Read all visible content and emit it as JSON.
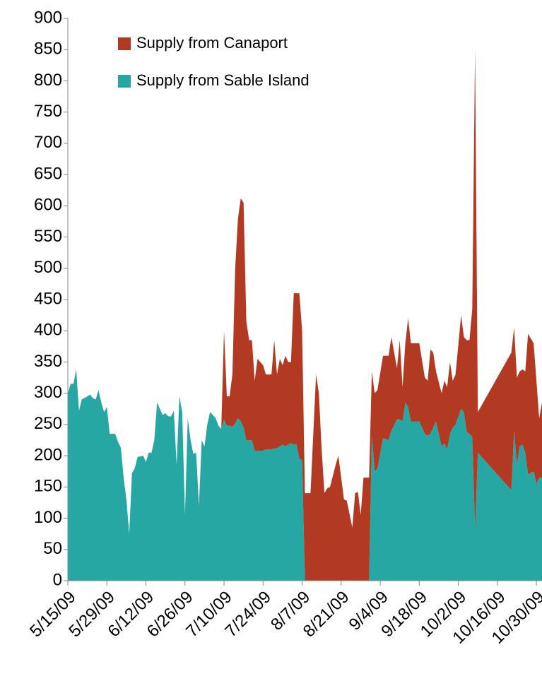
{
  "chart_data": {
    "type": "stacked-area",
    "x": [
      "5/15/09",
      "5/16/09",
      "5/17/09",
      "5/18/09",
      "5/19/09",
      "5/20/09",
      "5/22/09",
      "5/23/09",
      "5/24/09",
      "5/25/09",
      "5/26/09",
      "5/27/09",
      "5/28/09",
      "5/29/09",
      "5/30/09",
      "6/1/09",
      "6/2/09",
      "6/3/09",
      "6/4/09",
      "6/5/09",
      "6/6/09",
      "6/7/09",
      "6/8/09",
      "6/9/09",
      "6/11/09",
      "6/12/09",
      "6/13/09",
      "6/14/09",
      "6/15/09",
      "6/16/09",
      "6/17/09",
      "6/18/09",
      "6/19/09",
      "6/20/09",
      "6/21/09",
      "6/22/09",
      "6/23/09",
      "6/24/09",
      "6/25/09",
      "6/26/09",
      "6/27/09",
      "6/28/09",
      "6/29/09",
      "6/30/09",
      "7/1/09",
      "7/2/09",
      "7/3/09",
      "7/4/09",
      "7/5/09",
      "7/6/09",
      "7/7/09",
      "7/8/09",
      "7/9/09",
      "7/10/09",
      "7/11/09",
      "7/12/09",
      "7/13/09",
      "7/14/09",
      "7/15/09",
      "7/16/09",
      "7/17/09",
      "7/18/09",
      "7/19/09",
      "7/20/09",
      "7/21/09",
      "7/22/09",
      "7/23/09",
      "7/24/09",
      "7/25/09",
      "7/27/09",
      "7/28/09",
      "7/29/09",
      "7/30/09",
      "7/31/09",
      "8/1/09",
      "8/2/09",
      "8/3/09",
      "8/4/09",
      "8/5/09",
      "8/6/09",
      "8/7/09",
      "8/8/09",
      "8/10/09",
      "8/12/09",
      "8/13/09",
      "8/14/09",
      "8/15/09",
      "8/16/09",
      "8/17/09",
      "8/19/09",
      "8/20/09",
      "8/21/09",
      "8/22/09",
      "8/23/09",
      "8/25/09",
      "8/26/09",
      "8/27/09",
      "8/28/09",
      "8/29/09",
      "8/31/09",
      "9/1/09",
      "9/2/09",
      "9/3/09",
      "9/5/09",
      "9/7/09",
      "9/8/09",
      "9/10/09",
      "9/11/09",
      "9/12/09",
      "9/13/09",
      "9/14/09",
      "9/15/09",
      "9/18/09",
      "9/20/09",
      "9/21/09",
      "9/22/09",
      "9/23/09",
      "9/24/09",
      "9/26/09",
      "9/27/09",
      "9/28/09",
      "9/29/09",
      "9/30/09",
      "10/1/09",
      "10/3/09",
      "10/4/09",
      "10/5/09",
      "10/6/09",
      "10/7/09",
      "10/8/09",
      "10/9/09",
      "10/21/09",
      "10/22/09",
      "10/23/09",
      "10/24/09",
      "10/25/09",
      "10/26/09",
      "10/27/09",
      "10/29/09",
      "10/30/09",
      "10/31/09",
      "11/1/09"
    ],
    "series": [
      {
        "name": "Supply from Sable Island",
        "color": "#26a7a4",
        "values": [
          300,
          315,
          315,
          338,
          272,
          290,
          295,
          298,
          292,
          290,
          305,
          285,
          270,
          278,
          235,
          235,
          222,
          213,
          165,
          130,
          75,
          172,
          180,
          198,
          200,
          190,
          205,
          205,
          225,
          285,
          275,
          265,
          268,
          263,
          263,
          272,
          185,
          295,
          270,
          105,
          260,
          225,
          203,
          205,
          120,
          225,
          215,
          250,
          270,
          265,
          260,
          248,
          243,
          258,
          248,
          248,
          246,
          252,
          260,
          255,
          245,
          225,
          225,
          225,
          208,
          208,
          208,
          208,
          210,
          210,
          212,
          212,
          215,
          218,
          215,
          218,
          220,
          218,
          218,
          195,
          193,
          0,
          0,
          0,
          0,
          0,
          0,
          0,
          0,
          0,
          0,
          0,
          0,
          0,
          0,
          0,
          0,
          0,
          0,
          0,
          232,
          175,
          180,
          228,
          225,
          240,
          258,
          258,
          255,
          285,
          278,
          255,
          255,
          235,
          232,
          235,
          245,
          255,
          215,
          220,
          210,
          235,
          245,
          250,
          275,
          270,
          238,
          235,
          230,
          80,
          205,
          145,
          240,
          185,
          215,
          218,
          205,
          170,
          175,
          155,
          165,
          165
        ]
      },
      {
        "name": "Supply from Canaport",
        "color": "#b23a22",
        "values": [
          0,
          0,
          0,
          0,
          0,
          0,
          0,
          0,
          0,
          0,
          0,
          0,
          0,
          0,
          0,
          0,
          0,
          0,
          0,
          0,
          0,
          0,
          0,
          0,
          0,
          0,
          0,
          0,
          0,
          0,
          0,
          0,
          0,
          0,
          0,
          0,
          0,
          0,
          0,
          0,
          0,
          0,
          0,
          0,
          0,
          0,
          0,
          0,
          0,
          0,
          0,
          0,
          0,
          142,
          47,
          47,
          84,
          248,
          320,
          357,
          360,
          190,
          160,
          160,
          112,
          147,
          142,
          137,
          120,
          120,
          173,
          118,
          140,
          127,
          145,
          132,
          130,
          242,
          242,
          265,
          207,
          140,
          140,
          330,
          300,
          210,
          140,
          148,
          150,
          185,
          200,
          165,
          130,
          128,
          85,
          140,
          142,
          105,
          165,
          165,
          103,
          125,
          125,
          132,
          135,
          150,
          82,
          127,
          55,
          95,
          142,
          125,
          125,
          90,
          88,
          135,
          120,
          80,
          85,
          100,
          100,
          115,
          75,
          80,
          150,
          120,
          147,
          150,
          205,
          770,
          65,
          220,
          165,
          140,
          120,
          120,
          130,
          225,
          205,
          165,
          95,
          120
        ]
      }
    ],
    "xlim": [
      "5/15/09",
      "11/1/09"
    ],
    "xticks": [
      "5/15/09",
      "5/29/09",
      "6/12/09",
      "6/26/09",
      "7/10/09",
      "7/24/09",
      "8/7/09",
      "8/21/09",
      "9/4/09",
      "9/18/09",
      "10/2/09",
      "10/16/09",
      "10/30/09"
    ],
    "ylim": [
      0,
      900
    ],
    "yticks": [
      0,
      50,
      100,
      150,
      200,
      250,
      300,
      350,
      400,
      450,
      500,
      550,
      600,
      650,
      700,
      750,
      800,
      850,
      900
    ],
    "grid": false,
    "legend": "top-left"
  }
}
